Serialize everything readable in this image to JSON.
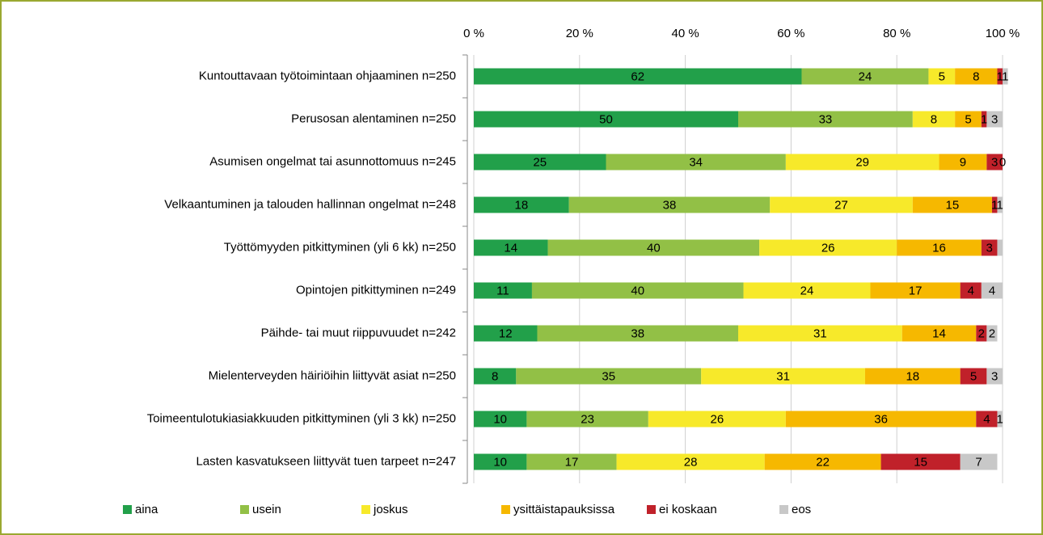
{
  "chart_data": {
    "type": "stacked-bar-horizontal",
    "categories": [
      "Kuntouttavaan työtoimintaan ohjaaminen n=250",
      "Perusosan alentaminen n=250",
      "Asumisen ongelmat tai asunnottomuus n=245",
      "Velkaantuminen ja talouden hallinnan ongelmat n=248",
      "Työttömyyden pitkittyminen (yli 6 kk) n=250",
      "Opintojen pitkittyminen n=249",
      "Päihde- tai muut riippuvuudet n=242",
      "Mielenterveyden häiriöihin liittyvät asiat n=250",
      "Toimeentulotukiasiakkuuden pitkittyminen (yli 3 kk) n=250",
      "Lasten kasvatukseen liittyvät tuen tarpeet n=247"
    ],
    "series": [
      {
        "name": "aina",
        "color": "#22a04a",
        "values": [
          62,
          50,
          25,
          18,
          14,
          11,
          12,
          8,
          10,
          10
        ]
      },
      {
        "name": "usein",
        "color": "#92c046",
        "values": [
          24,
          33,
          34,
          38,
          40,
          40,
          38,
          35,
          23,
          17
        ]
      },
      {
        "name": "joskus",
        "color": "#f7e92a",
        "values": [
          5,
          8,
          29,
          27,
          26,
          24,
          31,
          31,
          26,
          28
        ]
      },
      {
        "name": "ysittäistapauksissa",
        "color": "#f6b800",
        "values": [
          8,
          5,
          9,
          15,
          16,
          17,
          14,
          18,
          36,
          22
        ]
      },
      {
        "name": "ei koskaan",
        "color": "#c0212a",
        "values": [
          1,
          1,
          3,
          1,
          3,
          4,
          2,
          5,
          4,
          15
        ]
      },
      {
        "name": "eos",
        "color": "#c8c8c8",
        "values": [
          1,
          3,
          0,
          1,
          1,
          4,
          2,
          3,
          1,
          7
        ],
        "value_labels": [
          "1",
          "3",
          "0",
          "1",
          null,
          "4",
          "2",
          "3",
          "1",
          "7"
        ]
      }
    ],
    "xlim": [
      0,
      100
    ],
    "xticks": [
      {
        "value": 0,
        "label": "0 %"
      },
      {
        "value": 20,
        "label": "20 %"
      },
      {
        "value": 40,
        "label": "40 %"
      },
      {
        "value": 60,
        "label": "60 %"
      },
      {
        "value": 80,
        "label": "80 %"
      },
      {
        "value": 100,
        "label": "100 %"
      }
    ],
    "grid": true,
    "legend": "bottom"
  }
}
